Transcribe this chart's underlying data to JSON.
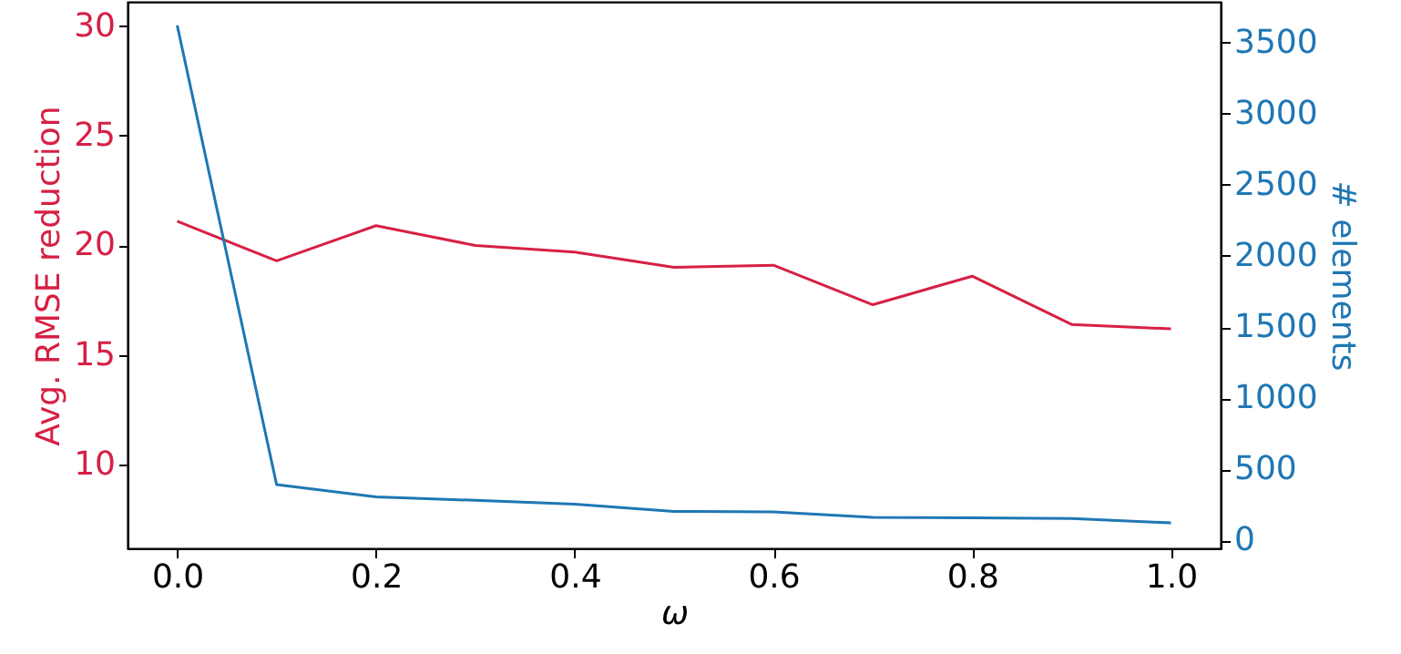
{
  "chart_data": {
    "type": "line",
    "xlabel": "ω",
    "ylabel": "Avg. RMSE reduction",
    "y2label": "# elements",
    "x": [
      0.0,
      0.1,
      0.2,
      0.3,
      0.4,
      0.5,
      0.6,
      0.7,
      0.8,
      0.9,
      1.0
    ],
    "series": [
      {
        "color": "#d62045",
        "values": [
          21.1,
          19.3,
          20.9,
          20.0,
          19.7,
          19.0,
          19.1,
          17.3,
          18.6,
          16.4,
          16.2
        ]
      },
      {
        "color": "#1f77b4",
        "axis": "y2",
        "values": [
          3620,
          393,
          307,
          282,
          256,
          205,
          201,
          163,
          160,
          154,
          124
        ]
      }
    ],
    "xlim": [
      -0.05,
      1.05
    ],
    "xticks": [
      {
        "value": 0.0,
        "label": "0.0"
      },
      {
        "value": 0.2,
        "label": "0.2"
      },
      {
        "value": 0.4,
        "label": "0.4"
      },
      {
        "value": 0.6,
        "label": "0.6"
      },
      {
        "value": 0.8,
        "label": "0.8"
      },
      {
        "value": 1.0,
        "label": "1.0"
      }
    ],
    "ylim": [
      6.2,
      31.1
    ],
    "yticks": [
      10,
      15,
      20,
      25,
      30
    ],
    "y2lim": [
      -55,
      3786
    ],
    "y2ticks": [
      0,
      500,
      1000,
      1500,
      2000,
      2500,
      3000,
      3500
    ],
    "grid": false,
    "marker": "none",
    "line_style": "solid"
  }
}
